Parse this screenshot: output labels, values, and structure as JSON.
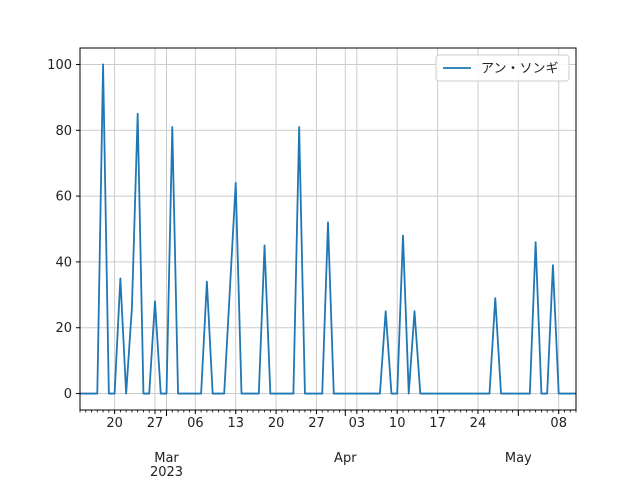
{
  "chart_data": {
    "type": "line",
    "title": "",
    "xlabel": "",
    "ylabel": "",
    "x_start": "2023-02-14",
    "x_end": "2023-05-11",
    "ylim": [
      -5,
      105
    ],
    "yticks": [
      0,
      20,
      40,
      60,
      80,
      100
    ],
    "xticks_minor": [
      {
        "date": "2023-02-20",
        "label": "20"
      },
      {
        "date": "2023-02-27",
        "label": "27"
      },
      {
        "date": "2023-03-06",
        "label": "06"
      },
      {
        "date": "2023-03-13",
        "label": "13"
      },
      {
        "date": "2023-03-20",
        "label": "20"
      },
      {
        "date": "2023-03-27",
        "label": "27"
      },
      {
        "date": "2023-04-03",
        "label": "03"
      },
      {
        "date": "2023-04-10",
        "label": "10"
      },
      {
        "date": "2023-04-17",
        "label": "17"
      },
      {
        "date": "2023-04-24",
        "label": "24"
      },
      {
        "date": "2023-05-08",
        "label": "08"
      }
    ],
    "xticks_major": [
      {
        "date": "2023-03-01",
        "label": "Mar",
        "sublabel": "2023"
      },
      {
        "date": "2023-04-01",
        "label": "Apr",
        "sublabel": ""
      },
      {
        "date": "2023-05-01",
        "label": "May",
        "sublabel": ""
      }
    ],
    "grid": true,
    "legend_position": "top-right",
    "series": [
      {
        "name": "アン・ソンギ",
        "color": "#1f77b4",
        "points": [
          [
            "2023-02-14",
            0
          ],
          [
            "2023-02-15",
            0
          ],
          [
            "2023-02-16",
            0
          ],
          [
            "2023-02-17",
            0
          ],
          [
            "2023-02-18",
            100
          ],
          [
            "2023-02-19",
            0
          ],
          [
            "2023-02-20",
            0
          ],
          [
            "2023-02-21",
            35
          ],
          [
            "2023-02-22",
            0
          ],
          [
            "2023-02-23",
            26
          ],
          [
            "2023-02-24",
            85
          ],
          [
            "2023-02-25",
            0
          ],
          [
            "2023-02-26",
            0
          ],
          [
            "2023-02-27",
            28
          ],
          [
            "2023-02-28",
            0
          ],
          [
            "2023-03-01",
            0
          ],
          [
            "2023-03-02",
            81
          ],
          [
            "2023-03-03",
            0
          ],
          [
            "2023-03-04",
            0
          ],
          [
            "2023-03-05",
            0
          ],
          [
            "2023-03-06",
            0
          ],
          [
            "2023-03-07",
            0
          ],
          [
            "2023-03-08",
            34
          ],
          [
            "2023-03-09",
            0
          ],
          [
            "2023-03-10",
            0
          ],
          [
            "2023-03-11",
            0
          ],
          [
            "2023-03-12",
            32
          ],
          [
            "2023-03-13",
            64
          ],
          [
            "2023-03-14",
            0
          ],
          [
            "2023-03-15",
            0
          ],
          [
            "2023-03-16",
            0
          ],
          [
            "2023-03-17",
            0
          ],
          [
            "2023-03-18",
            45
          ],
          [
            "2023-03-19",
            0
          ],
          [
            "2023-03-20",
            0
          ],
          [
            "2023-03-21",
            0
          ],
          [
            "2023-03-22",
            0
          ],
          [
            "2023-03-23",
            0
          ],
          [
            "2023-03-24",
            81
          ],
          [
            "2023-03-25",
            0
          ],
          [
            "2023-03-26",
            0
          ],
          [
            "2023-03-27",
            0
          ],
          [
            "2023-03-28",
            0
          ],
          [
            "2023-03-29",
            52
          ],
          [
            "2023-03-30",
            0
          ],
          [
            "2023-03-31",
            0
          ],
          [
            "2023-04-01",
            0
          ],
          [
            "2023-04-02",
            0
          ],
          [
            "2023-04-03",
            0
          ],
          [
            "2023-04-04",
            0
          ],
          [
            "2023-04-05",
            0
          ],
          [
            "2023-04-06",
            0
          ],
          [
            "2023-04-07",
            0
          ],
          [
            "2023-04-08",
            25
          ],
          [
            "2023-04-09",
            0
          ],
          [
            "2023-04-10",
            0
          ],
          [
            "2023-04-11",
            48
          ],
          [
            "2023-04-12",
            0
          ],
          [
            "2023-04-13",
            25
          ],
          [
            "2023-04-14",
            0
          ],
          [
            "2023-04-15",
            0
          ],
          [
            "2023-04-16",
            0
          ],
          [
            "2023-04-17",
            0
          ],
          [
            "2023-04-18",
            0
          ],
          [
            "2023-04-19",
            0
          ],
          [
            "2023-04-20",
            0
          ],
          [
            "2023-04-21",
            0
          ],
          [
            "2023-04-22",
            0
          ],
          [
            "2023-04-23",
            0
          ],
          [
            "2023-04-24",
            0
          ],
          [
            "2023-04-25",
            0
          ],
          [
            "2023-04-26",
            0
          ],
          [
            "2023-04-27",
            29
          ],
          [
            "2023-04-28",
            0
          ],
          [
            "2023-04-29",
            0
          ],
          [
            "2023-04-30",
            0
          ],
          [
            "2023-05-01",
            0
          ],
          [
            "2023-05-02",
            0
          ],
          [
            "2023-05-03",
            0
          ],
          [
            "2023-05-04",
            46
          ],
          [
            "2023-05-05",
            0
          ],
          [
            "2023-05-06",
            0
          ],
          [
            "2023-05-07",
            39
          ],
          [
            "2023-05-08",
            0
          ],
          [
            "2023-05-09",
            0
          ],
          [
            "2023-05-10",
            0
          ],
          [
            "2023-05-11",
            0
          ]
        ]
      }
    ]
  }
}
